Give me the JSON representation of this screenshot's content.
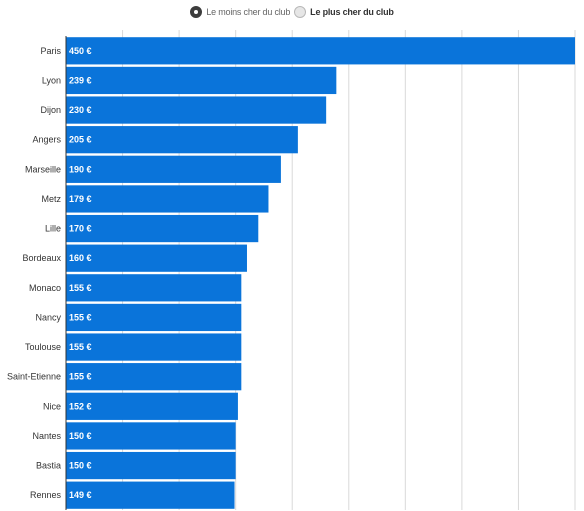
{
  "toggle": {
    "options": [
      {
        "label": "Le moins cher du club",
        "selected": true
      },
      {
        "label": "Le plus cher du club",
        "selected": false
      }
    ]
  },
  "colors": {
    "bar": "#0a74da",
    "grid": "#d9d9d9",
    "axis": "#333333"
  },
  "chart_data": {
    "type": "bar",
    "orientation": "horizontal",
    "categories": [
      "Paris",
      "Lyon",
      "Dijon",
      "Angers",
      "Marseille",
      "Metz",
      "Lille",
      "Bordeaux",
      "Monaco",
      "Nancy",
      "Toulouse",
      "Saint-Etienne",
      "Nice",
      "Nantes",
      "Bastia",
      "Rennes"
    ],
    "values": [
      450,
      239,
      230,
      205,
      190,
      179,
      170,
      160,
      155,
      155,
      155,
      155,
      152,
      150,
      150,
      149
    ],
    "value_labels": [
      "450 €",
      "239 €",
      "230 €",
      "205 €",
      "190 €",
      "179 €",
      "170 €",
      "160 €",
      "155 €",
      "155 €",
      "155 €",
      "155 €",
      "152 €",
      "150 €",
      "150 €",
      "149 €"
    ],
    "title": "",
    "xlabel": "",
    "ylabel": "",
    "xlim": [
      0,
      450
    ],
    "grid": true,
    "legend": "none"
  }
}
